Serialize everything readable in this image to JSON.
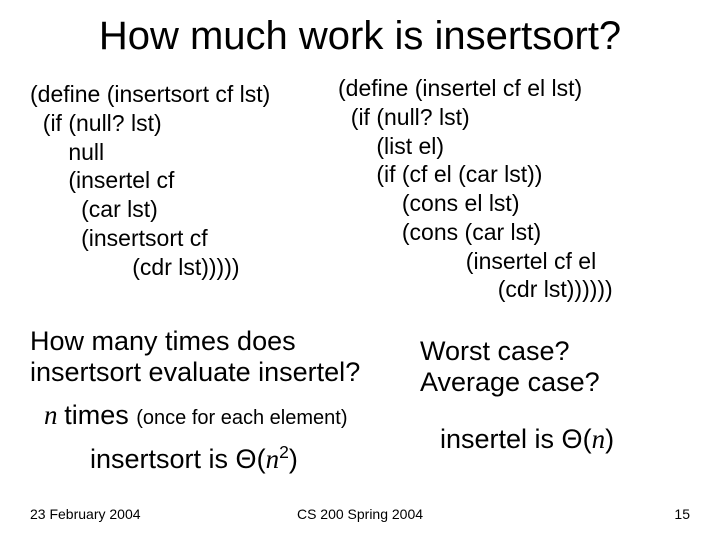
{
  "title": "How much work is insertsort?",
  "code_left": "(define (insertsort cf lst)\n  (if (null? lst)\n      null\n      (insertel cf\n        (car lst)\n        (insertsort cf\n                (cdr lst)))))",
  "code_right": "(define (insertel cf el lst)\n  (if (null? lst)\n      (list el)\n      (if (cf el (car lst))\n          (cons el lst)\n          (cons (car lst)\n                    (insertel cf el\n                         (cdr lst))))))",
  "question_left_line1": "How many times does",
  "question_left_line2_a": "insertsort ",
  "question_left_line2_b": "evaluate ",
  "question_left_line2_c": "insertel",
  "question_left_line2_d": "?",
  "question_right_line1": "Worst case?",
  "question_right_line2": "Average case?",
  "answer_n": "n ",
  "answer_times": "times ",
  "answer_paren": "(once for each element)",
  "complexity_left_a": "insertsort is ",
  "theta": "Θ",
  "complexity_left_b": "(",
  "complexity_left_n": "n",
  "complexity_left_exp": "2",
  "complexity_left_c": ")",
  "complexity_right_a": "insertel is ",
  "complexity_right_b": "(",
  "complexity_right_n": "n",
  "complexity_right_c": ")",
  "footer_date": "23 February 2004",
  "footer_course": "CS 200 Spring 2004",
  "footer_page": "15",
  "colors": {
    "background": "#ffffff",
    "text": "#000000"
  },
  "fonts": {
    "body": "Arial",
    "italic_var": "Times New Roman"
  }
}
